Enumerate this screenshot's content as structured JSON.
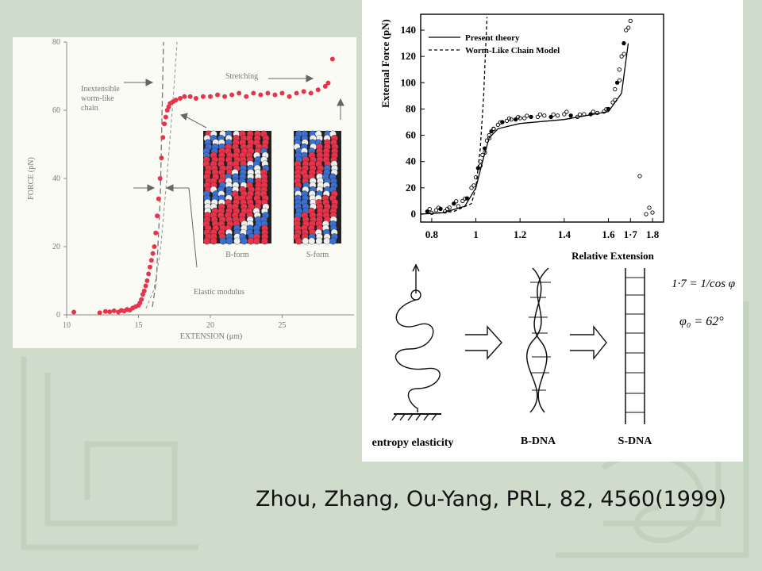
{
  "left_chart": {
    "xlabel": "EXTENSION (μm)",
    "ylabel": "FORCE (pN)",
    "xticks": [
      "10",
      "15",
      "20",
      "25"
    ],
    "yticks": [
      "0",
      "20",
      "40",
      "60",
      "80"
    ],
    "annotations": {
      "inextensible": [
        "Inextensible",
        "worm-like",
        "chain"
      ],
      "stretching": "Stretching",
      "elastic": "Elastic modulus",
      "bform": "B-form",
      "sform": "S-form"
    }
  },
  "right_chart": {
    "xlabel": "Relative Extension",
    "ylabel": "External Force (pN)",
    "xticks": [
      "0.8",
      "1",
      "1.2",
      "1.4",
      "1.6",
      "1·7",
      "1.8"
    ],
    "yticks": [
      "0",
      "20",
      "40",
      "60",
      "80",
      "100",
      "120",
      "140"
    ],
    "legend": [
      "Present theory",
      "Worm-Like Chain Model"
    ]
  },
  "sketch": {
    "labels": [
      "entropy elasticity",
      "B-DNA",
      "S-DNA"
    ],
    "note_line1": "1·7 = 1/cos φ",
    "note_line2": "φ₀ = 62°"
  },
  "citation": "Zhou, Zhang, Ou-Yang, PRL, 82, 4560(1999)",
  "colors": {
    "background": "#cfdccb",
    "points_red": "#e8344a",
    "dna_blue": "#3b6fd0"
  },
  "chart_data": [
    {
      "type": "scatter",
      "xlim": [
        10,
        29
      ],
      "ylim": [
        0,
        80
      ],
      "series": [
        {
          "x": [
            10.5,
            12.3,
            12.7,
            13.0,
            13.3,
            13.6,
            13.8,
            14.0,
            14.2,
            14.4,
            14.6,
            14.8,
            15.0,
            15.1,
            15.2,
            15.3,
            15.4,
            15.5,
            15.6,
            15.7,
            15.8,
            15.9,
            16.0,
            16.1,
            16.2,
            16.3,
            16.4,
            16.5,
            16.6,
            16.7,
            16.8,
            16.9,
            17.0,
            17.1,
            17.2,
            17.4,
            17.6,
            17.9,
            18.2,
            18.6,
            19.0,
            19.5,
            20.0,
            20.5,
            21.0,
            21.5,
            22.0,
            22.5,
            23.0,
            23.5,
            24.0,
            24.5,
            25.0,
            25.5,
            26.0,
            26.5,
            27.0,
            27.5,
            28.0,
            28.2,
            28.5
          ],
          "y": [
            0.8,
            0.6,
            1.0,
            0.9,
            1.2,
            0.8,
            1.3,
            1.1,
            1.6,
            1.4,
            2.0,
            2.4,
            2.8,
            3.5,
            4.5,
            6.0,
            7.0,
            8.5,
            10,
            12,
            14,
            16,
            18,
            20,
            24,
            29,
            34,
            40,
            46,
            52,
            56,
            58,
            60,
            61,
            62,
            62.5,
            63,
            63.5,
            64,
            64,
            63.5,
            64,
            64,
            64.5,
            64,
            64.5,
            65,
            64,
            65,
            64.5,
            65,
            64.5,
            65,
            64,
            65,
            65.5,
            65,
            66,
            67,
            68,
            75
          ]
        }
      ]
    },
    {
      "type": "scatter",
      "xlim": [
        0.75,
        1.85
      ],
      "ylim": [
        -5,
        150
      ],
      "series": [
        {
          "x": [
            0.78,
            0.8,
            0.82,
            0.84,
            0.86,
            0.88,
            0.9,
            0.92,
            0.94,
            0.96,
            0.98,
            1.0,
            1.01,
            1.02,
            1.03,
            1.04,
            1.05,
            1.06,
            1.07,
            1.08,
            1.1,
            1.12,
            1.14,
            1.16,
            1.18,
            1.2,
            1.22,
            1.25,
            1.28,
            1.31,
            1.34,
            1.37,
            1.4,
            1.43,
            1.46,
            1.49,
            1.52,
            1.55,
            1.58,
            1.6,
            1.62,
            1.63,
            1.64,
            1.65,
            1.66,
            1.67,
            1.68,
            1.7
          ],
          "y": [
            2,
            1,
            3,
            4,
            2,
            5,
            8,
            6,
            10,
            12,
            20,
            28,
            35,
            40,
            45,
            50,
            56,
            60,
            63,
            65,
            68,
            70,
            71,
            72,
            72,
            73,
            73,
            74,
            74,
            75,
            74,
            75,
            76,
            75,
            74,
            76,
            76,
            77,
            78,
            80,
            85,
            95,
            100,
            110,
            120,
            130,
            140,
            147
          ]
        },
        {
          "name": "Present theory",
          "x": [
            0.75,
            0.85,
            0.95,
            1.0,
            1.03,
            1.06,
            1.1,
            1.2,
            1.4,
            1.6,
            1.66,
            1.69
          ],
          "y": [
            0,
            1,
            6,
            20,
            40,
            58,
            65,
            69,
            72,
            78,
            92,
            130
          ]
        },
        {
          "name": "Worm-Like Chain Model",
          "x": [
            0.75,
            0.9,
            0.98,
            1.0,
            1.02,
            1.035,
            1.05
          ],
          "y": [
            0,
            2,
            8,
            20,
            50,
            90,
            150
          ]
        }
      ]
    }
  ]
}
